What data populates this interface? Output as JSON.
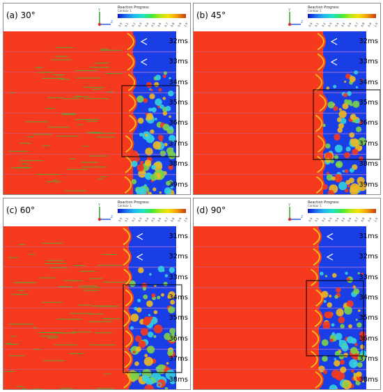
{
  "panels": [
    {
      "label": "(a) 30°",
      "legend_title": "Reaction Progress",
      "legend_sub": "Contour 1",
      "times": [
        "32ms",
        "33ms",
        "34ms",
        "35ms",
        "36ms",
        "37ms",
        "38ms",
        "39ms"
      ]
    },
    {
      "label": "(b) 45°",
      "legend_title": "Reaction Progress",
      "legend_sub": "Contour 1",
      "times": [
        "32ms",
        "33ms",
        "34ms",
        "35ms",
        "36ms",
        "37ms",
        "38ms",
        "39ms"
      ]
    },
    {
      "label": "(c) 60°",
      "legend_title": "Reaction Progress",
      "legend_sub": "Contour 1",
      "times": [
        "31ms",
        "32ms",
        "33ms",
        "34ms",
        "35ms",
        "36ms",
        "37ms",
        "38ms"
      ]
    },
    {
      "label": "(d) 90°",
      "legend_title": "Reaction Progress",
      "legend_sub": "Contour 1",
      "times": [
        "31ms",
        "32ms",
        "33ms",
        "34ms",
        "35ms",
        "36ms",
        "37ms",
        "38ms"
      ]
    }
  ],
  "legend_ticks": [
    "0.0",
    "0.1",
    "0.2",
    "0.3",
    "0.4",
    "0.5",
    "0.6",
    "0.7",
    "0.8",
    "0.9",
    "1.0"
  ],
  "axis_labels": {
    "y": "Y",
    "z": "Z"
  },
  "colors": {
    "burned": "#f53a1e",
    "unburned": "#1a3ee6",
    "front": "#f0b820",
    "mix": "#34d0e0",
    "highlight": "#7cd34a"
  }
}
